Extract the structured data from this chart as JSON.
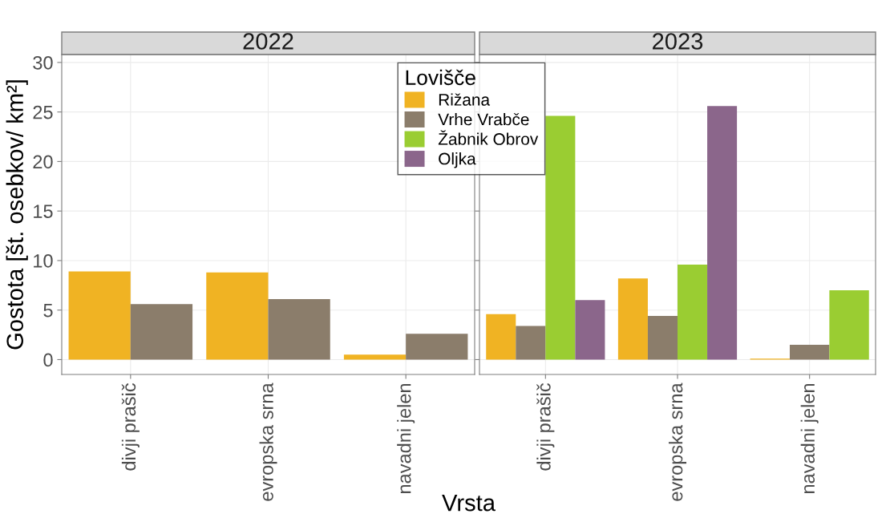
{
  "chart_data": [
    {
      "type": "bar",
      "title": "2022",
      "ylabel": "Gostota [št. osebkov/ km²]",
      "xlabel": "Vrsta",
      "legend_title": "Lovišče",
      "categories": [
        "divji prašič",
        "evropska srna",
        "navadni jelen"
      ],
      "series": [
        {
          "name": "Rižana",
          "color": "#f0b323",
          "values": [
            8.9,
            8.8,
            0.5
          ]
        },
        {
          "name": "Vrhe Vrabče",
          "color": "#8b7d6b",
          "values": [
            5.6,
            6.1,
            2.6
          ]
        },
        {
          "name": "Žabnik Obrov",
          "color": "#9acd32",
          "values": [
            null,
            null,
            null
          ]
        },
        {
          "name": "Oljka",
          "color": "#8b668b",
          "values": [
            null,
            null,
            null
          ]
        }
      ],
      "ylim": [
        -1.5,
        30.8
      ],
      "yticks": [
        0,
        5,
        10,
        15,
        20,
        25,
        30
      ],
      "grid": true,
      "legend": "top right"
    },
    {
      "type": "bar",
      "title": "2023",
      "categories": [
        "divji prašič",
        "evropska srna",
        "navadni jelen"
      ],
      "series": [
        {
          "color": "#f0b323",
          "values": [
            4.6,
            8.2,
            0.1
          ]
        },
        {
          "color": "#8b7d6b",
          "values": [
            3.4,
            4.4,
            1.5
          ]
        },
        {
          "color": "#9acd32",
          "values": [
            24.6,
            9.6,
            7.0
          ]
        },
        {
          "color": "#8b668b",
          "values": [
            6.0,
            25.6,
            null
          ]
        }
      ],
      "ylim": [
        -1.5,
        30.8
      ],
      "yticks": [
        0,
        5,
        10,
        15,
        20,
        25,
        30
      ],
      "grid": true,
      "tick_labels": "x"
    }
  ]
}
